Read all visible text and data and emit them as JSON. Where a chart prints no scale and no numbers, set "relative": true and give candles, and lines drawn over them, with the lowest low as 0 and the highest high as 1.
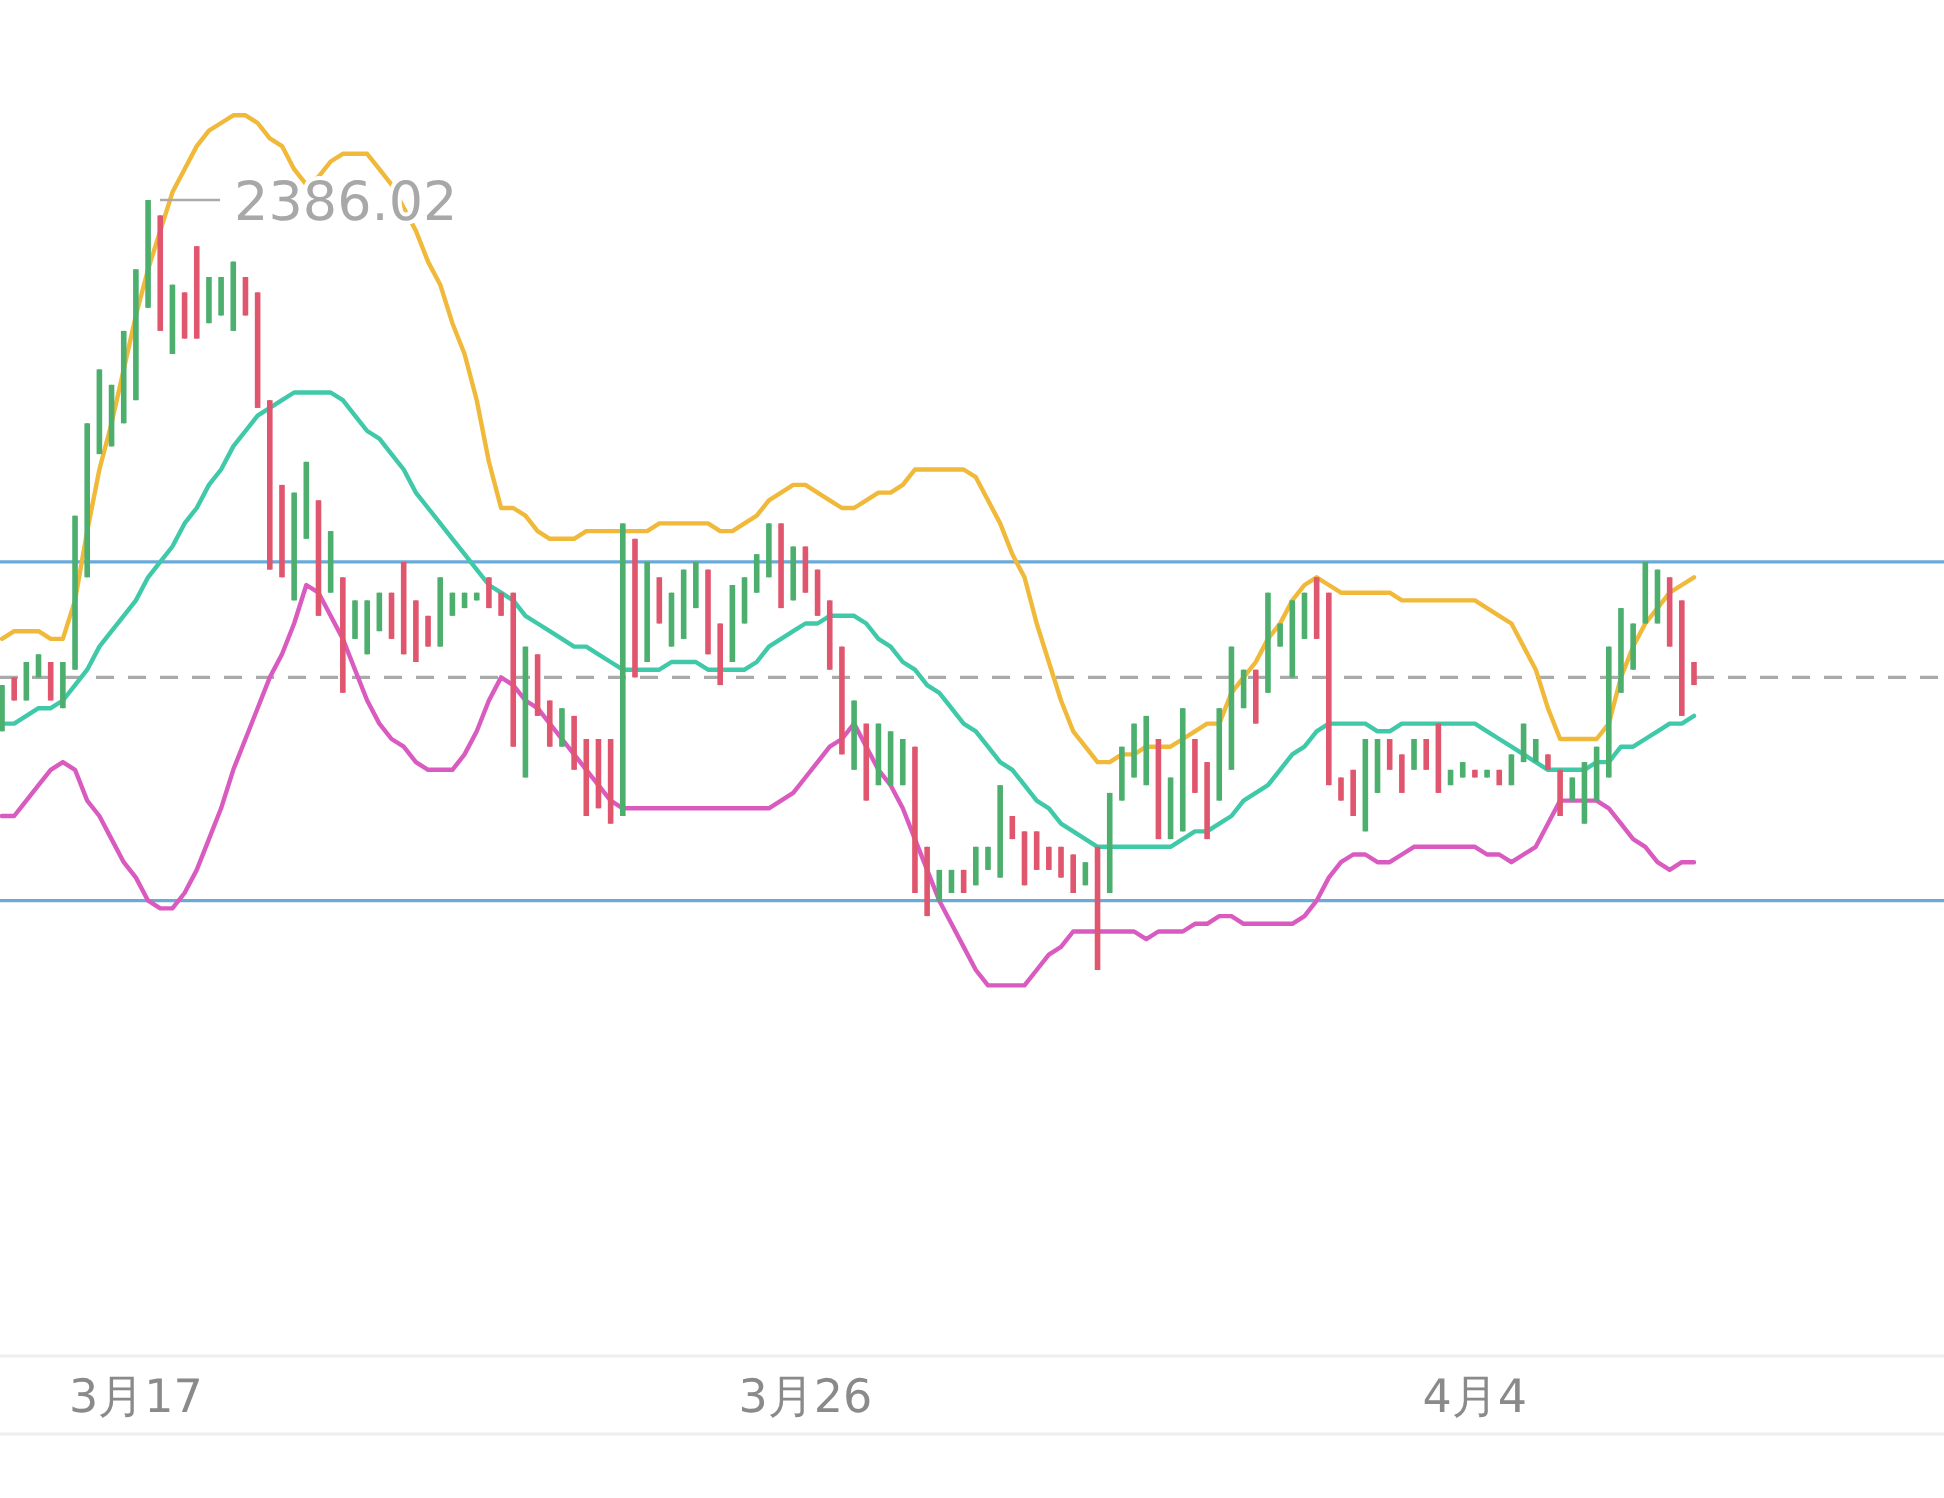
{
  "chart_data": {
    "type": "candlestick",
    "relative": true,
    "categories": [
      null,
      null,
      null,
      null,
      null,
      null,
      null,
      null,
      null,
      null,
      null,
      "3月17",
      null,
      null,
      null,
      null,
      null,
      null,
      null,
      null,
      null,
      null,
      null,
      null,
      null,
      null,
      null,
      null,
      null,
      null,
      null,
      null,
      null,
      null,
      null,
      null,
      null,
      null,
      null,
      null,
      null,
      null,
      null,
      null,
      null,
      null,
      null,
      null,
      null,
      null,
      null,
      null,
      null,
      null,
      null,
      null,
      null,
      null,
      null,
      null,
      null,
      null,
      null,
      null,
      null,
      null,
      "3月26",
      null,
      null,
      null,
      null,
      null,
      null,
      null,
      null,
      null,
      null,
      null,
      null,
      null,
      null,
      null,
      null,
      null,
      null,
      null,
      null,
      null,
      null,
      null,
      null,
      null,
      null,
      null,
      null,
      null,
      null,
      null,
      null,
      null,
      null,
      null,
      null,
      null,
      null,
      null,
      null,
      null,
      null,
      null,
      null,
      null,
      null,
      null,
      null,
      null,
      null,
      null,
      null,
      null,
      null,
      "4月4",
      null,
      null,
      null,
      null,
      null,
      null,
      null,
      null,
      null,
      null,
      null,
      null,
      null,
      null,
      null,
      null,
      null,
      null
    ],
    "ohlc": [
      [
        0.31,
        0.37,
        0.31,
        0.37
      ],
      [
        0.38,
        0.38,
        0.35,
        0.35
      ],
      [
        0.35,
        0.4,
        0.35,
        0.4
      ],
      [
        0.38,
        0.41,
        0.38,
        0.41
      ],
      [
        0.4,
        0.4,
        0.35,
        0.35
      ],
      [
        0.34,
        0.4,
        0.34,
        0.4
      ],
      [
        0.39,
        0.59,
        0.39,
        0.59
      ],
      [
        0.51,
        0.71,
        0.51,
        0.71
      ],
      [
        0.67,
        0.78,
        0.67,
        0.78
      ],
      [
        0.68,
        0.76,
        0.68,
        0.76
      ],
      [
        0.71,
        0.83,
        0.71,
        0.83
      ],
      [
        0.74,
        0.91,
        0.74,
        0.91
      ],
      [
        0.86,
        1,
        0.86,
        1
      ],
      [
        0.98,
        0.98,
        0.83,
        0.83
      ],
      [
        0.8,
        0.89,
        0.8,
        0.89
      ],
      [
        0.88,
        0.88,
        0.82,
        0.82
      ],
      [
        0.94,
        0.94,
        0.82,
        0.82
      ],
      [
        0.84,
        0.9,
        0.84,
        0.9
      ],
      [
        0.85,
        0.9,
        0.85,
        0.9
      ],
      [
        0.83,
        0.92,
        0.83,
        0.92
      ],
      [
        0.9,
        0.9,
        0.85,
        0.85
      ],
      [
        0.88,
        0.88,
        0.73,
        0.73
      ],
      [
        0.74,
        0.74,
        0.52,
        0.52
      ],
      [
        0.63,
        0.63,
        0.51,
        0.51
      ],
      [
        0.48,
        0.62,
        0.48,
        0.62
      ],
      [
        0.56,
        0.66,
        0.56,
        0.66
      ],
      [
        0.61,
        0.61,
        0.46,
        0.46
      ],
      [
        0.49,
        0.57,
        0.49,
        0.57
      ],
      [
        0.51,
        0.51,
        0.36,
        0.36
      ],
      [
        0.43,
        0.48,
        0.43,
        0.48
      ],
      [
        0.41,
        0.48,
        0.41,
        0.48
      ],
      [
        0.44,
        0.49,
        0.44,
        0.49
      ],
      [
        0.49,
        0.49,
        0.43,
        0.43
      ],
      [
        0.53,
        0.53,
        0.41,
        0.41
      ],
      [
        0.48,
        0.48,
        0.4,
        0.4
      ],
      [
        0.46,
        0.46,
        0.42,
        0.42
      ],
      [
        0.42,
        0.51,
        0.42,
        0.51
      ],
      [
        0.46,
        0.49,
        0.46,
        0.49
      ],
      [
        0.47,
        0.49,
        0.47,
        0.49
      ],
      [
        0.48,
        0.49,
        0.48,
        0.49
      ],
      [
        0.51,
        0.51,
        0.47,
        0.47
      ],
      [
        0.49,
        0.49,
        0.46,
        0.46
      ],
      [
        0.49,
        0.49,
        0.29,
        0.29
      ],
      [
        0.25,
        0.42,
        0.25,
        0.42
      ],
      [
        0.41,
        0.41,
        0.33,
        0.33
      ],
      [
        0.35,
        0.35,
        0.29,
        0.29
      ],
      [
        0.29,
        0.34,
        0.29,
        0.34
      ],
      [
        0.33,
        0.33,
        0.26,
        0.26
      ],
      [
        0.3,
        0.3,
        0.2,
        0.2
      ],
      [
        0.3,
        0.3,
        0.21,
        0.21
      ],
      [
        0.3,
        0.3,
        0.19,
        0.19
      ],
      [
        0.2,
        0.58,
        0.2,
        0.58
      ],
      [
        0.56,
        0.56,
        0.38,
        0.38
      ],
      [
        0.4,
        0.53,
        0.4,
        0.53
      ],
      [
        0.51,
        0.51,
        0.45,
        0.45
      ],
      [
        0.42,
        0.49,
        0.42,
        0.49
      ],
      [
        0.43,
        0.52,
        0.43,
        0.52
      ],
      [
        0.47,
        0.53,
        0.47,
        0.53
      ],
      [
        0.52,
        0.52,
        0.41,
        0.41
      ],
      [
        0.45,
        0.45,
        0.37,
        0.37
      ],
      [
        0.4,
        0.5,
        0.4,
        0.5
      ],
      [
        0.45,
        0.51,
        0.45,
        0.51
      ],
      [
        0.49,
        0.54,
        0.49,
        0.54
      ],
      [
        0.51,
        0.58,
        0.51,
        0.58
      ],
      [
        0.58,
        0.58,
        0.47,
        0.47
      ],
      [
        0.48,
        0.55,
        0.48,
        0.55
      ],
      [
        0.55,
        0.55,
        0.49,
        0.49
      ],
      [
        0.52,
        0.52,
        0.46,
        0.46
      ],
      [
        0.48,
        0.48,
        0.39,
        0.39
      ],
      [
        0.42,
        0.42,
        0.28,
        0.28
      ],
      [
        0.26,
        0.35,
        0.26,
        0.35
      ],
      [
        0.32,
        0.32,
        0.22,
        0.22
      ],
      [
        0.24,
        0.32,
        0.24,
        0.32
      ],
      [
        0.24,
        0.31,
        0.24,
        0.31
      ],
      [
        0.24,
        0.3,
        0.24,
        0.3
      ],
      [
        0.29,
        0.29,
        0.1,
        0.1
      ],
      [
        0.16,
        0.16,
        0.07,
        0.07
      ],
      [
        0.09,
        0.13,
        0.09,
        0.13
      ],
      [
        0.1,
        0.13,
        0.1,
        0.13
      ],
      [
        0.13,
        0.13,
        0.1,
        0.1
      ],
      [
        0.11,
        0.16,
        0.11,
        0.16
      ],
      [
        0.13,
        0.16,
        0.13,
        0.16
      ],
      [
        0.12,
        0.24,
        0.12,
        0.24
      ],
      [
        0.2,
        0.2,
        0.17,
        0.17
      ],
      [
        0.18,
        0.18,
        0.11,
        0.11
      ],
      [
        0.18,
        0.18,
        0.13,
        0.13
      ],
      [
        0.16,
        0.16,
        0.13,
        0.13
      ],
      [
        0.16,
        0.16,
        0.12,
        0.12
      ],
      [
        0.15,
        0.15,
        0.1,
        0.1
      ],
      [
        0.11,
        0.14,
        0.11,
        0.14
      ],
      [
        0.16,
        0.16,
        0,
        0
      ],
      [
        0.1,
        0.23,
        0.1,
        0.23
      ],
      [
        0.22,
        0.29,
        0.22,
        0.29
      ],
      [
        0.25,
        0.32,
        0.25,
        0.32
      ],
      [
        0.24,
        0.33,
        0.24,
        0.33
      ],
      [
        0.3,
        0.3,
        0.17,
        0.17
      ],
      [
        0.17,
        0.25,
        0.17,
        0.25
      ],
      [
        0.18,
        0.34,
        0.18,
        0.34
      ],
      [
        0.3,
        0.3,
        0.23,
        0.23
      ],
      [
        0.27,
        0.27,
        0.17,
        0.17
      ],
      [
        0.22,
        0.34,
        0.22,
        0.34
      ],
      [
        0.26,
        0.42,
        0.26,
        0.42
      ],
      [
        0.34,
        0.39,
        0.34,
        0.39
      ],
      [
        0.39,
        0.39,
        0.32,
        0.32
      ],
      [
        0.36,
        0.49,
        0.36,
        0.49
      ],
      [
        0.42,
        0.45,
        0.42,
        0.45
      ],
      [
        0.38,
        0.48,
        0.38,
        0.48
      ],
      [
        0.43,
        0.49,
        0.43,
        0.49
      ],
      [
        0.51,
        0.51,
        0.43,
        0.43
      ],
      [
        0.49,
        0.49,
        0.24,
        0.24
      ],
      [
        0.25,
        0.25,
        0.22,
        0.22
      ],
      [
        0.26,
        0.26,
        0.2,
        0.2
      ],
      [
        0.18,
        0.3,
        0.18,
        0.3
      ],
      [
        0.23,
        0.3,
        0.23,
        0.3
      ],
      [
        0.3,
        0.3,
        0.26,
        0.26
      ],
      [
        0.28,
        0.28,
        0.23,
        0.23
      ],
      [
        0.26,
        0.3,
        0.26,
        0.3
      ],
      [
        0.3,
        0.3,
        0.26,
        0.26
      ],
      [
        0.32,
        0.32,
        0.23,
        0.23
      ],
      [
        0.24,
        0.26,
        0.24,
        0.26
      ],
      [
        0.25,
        0.27,
        0.25,
        0.27
      ],
      [
        0.26,
        0.26,
        0.25,
        0.25
      ],
      [
        0.25,
        0.26,
        0.25,
        0.26
      ],
      [
        0.26,
        0.26,
        0.24,
        0.24
      ],
      [
        0.24,
        0.28,
        0.24,
        0.28
      ],
      [
        0.27,
        0.32,
        0.27,
        0.32
      ],
      [
        0.27,
        0.3,
        0.27,
        0.3
      ],
      [
        0.28,
        0.28,
        0.26,
        0.26
      ],
      [
        0.26,
        0.26,
        0.2,
        0.2
      ],
      [
        0.22,
        0.25,
        0.22,
        0.25
      ],
      [
        0.19,
        0.27,
        0.19,
        0.27
      ],
      [
        0.22,
        0.29,
        0.22,
        0.29
      ],
      [
        0.25,
        0.42,
        0.25,
        0.42
      ],
      [
        0.36,
        0.47,
        0.36,
        0.47
      ],
      [
        0.39,
        0.45,
        0.39,
        0.45
      ],
      [
        0.45,
        0.53,
        0.45,
        0.53
      ],
      [
        0.45,
        0.52,
        0.45,
        0.52
      ],
      [
        0.51,
        0.51,
        0.42,
        0.42
      ],
      [
        0.48,
        0.48,
        0.33,
        0.33
      ],
      [
        0.4,
        0.4,
        0.37,
        0.37
      ]
    ],
    "colors": [
      "#4caf6e",
      "#e0566e",
      "#4caf6e",
      "#4caf6e",
      "#e0566e",
      "#4caf6e",
      "#4caf6e",
      "#4caf6e",
      "#4caf6e",
      "#4caf6e",
      "#4caf6e",
      "#4caf6e",
      "#4caf6e",
      "#e0566e",
      "#4caf6e",
      "#e0566e",
      "#e0566e",
      "#4caf6e",
      "#4caf6e",
      "#4caf6e",
      "#e0566e",
      "#e0566e",
      "#e0566e",
      "#e0566e",
      "#4caf6e",
      "#4caf6e",
      "#e0566e",
      "#4caf6e",
      "#e0566e",
      "#4caf6e",
      "#4caf6e",
      "#4caf6e",
      "#e0566e",
      "#e0566e",
      "#e0566e",
      "#e0566e",
      "#4caf6e",
      "#4caf6e",
      "#4caf6e",
      "#4caf6e",
      "#e0566e",
      "#e0566e",
      "#e0566e",
      "#4caf6e",
      "#e0566e",
      "#e0566e",
      "#4caf6e",
      "#e0566e",
      "#e0566e",
      "#e0566e",
      "#e0566e",
      "#4caf6e",
      "#e0566e",
      "#4caf6e",
      "#e0566e",
      "#4caf6e",
      "#4caf6e",
      "#4caf6e",
      "#e0566e",
      "#e0566e",
      "#4caf6e",
      "#4caf6e",
      "#4caf6e",
      "#4caf6e",
      "#e0566e",
      "#4caf6e",
      "#e0566e",
      "#e0566e",
      "#e0566e",
      "#e0566e",
      "#4caf6e",
      "#e0566e",
      "#4caf6e",
      "#4caf6e",
      "#4caf6e",
      "#e0566e",
      "#e0566e",
      "#4caf6e",
      "#4caf6e",
      "#e0566e",
      "#4caf6e",
      "#4caf6e",
      "#4caf6e",
      "#e0566e",
      "#e0566e",
      "#e0566e",
      "#e0566e",
      "#e0566e",
      "#e0566e",
      "#4caf6e",
      "#e0566e",
      "#4caf6e",
      "#4caf6e",
      "#4caf6e",
      "#4caf6e",
      "#e0566e",
      "#4caf6e",
      "#4caf6e",
      "#e0566e",
      "#e0566e",
      "#4caf6e",
      "#4caf6e",
      "#4caf6e",
      "#e0566e",
      "#4caf6e",
      "#4caf6e",
      "#4caf6e",
      "#4caf6e",
      "#e0566e",
      "#e0566e",
      "#e0566e",
      "#e0566e",
      "#4caf6e",
      "#4caf6e",
      "#e0566e",
      "#e0566e",
      "#4caf6e",
      "#e0566e",
      "#e0566e",
      "#4caf6e",
      "#4caf6e",
      "#e0566e",
      "#4caf6e",
      "#e0566e",
      "#4caf6e",
      "#4caf6e",
      "#4caf6e",
      "#e0566e",
      "#e0566e",
      "#4caf6e",
      "#4caf6e",
      "#4caf6e",
      "#4caf6e",
      "#4caf6e",
      "#4caf6e",
      "#4caf6e",
      "#4caf6e",
      "#e0566e",
      "#e0566e",
      "#e0566e"
    ],
    "series": [
      {
        "type": "line",
        "color": "#f0b93a",
        "values": [
          0.43,
          0.44,
          0.44,
          0.44,
          0.43,
          0.43,
          0.48,
          0.57,
          0.65,
          0.71,
          0.78,
          0.85,
          0.91,
          0.96,
          1.01,
          1.04,
          1.07,
          1.09,
          1.1,
          1.11,
          1.11,
          1.1,
          1.08,
          1.07,
          1.04,
          1.02,
          1.03,
          1.05,
          1.06,
          1.06,
          1.06,
          1.04,
          1.02,
          0.99,
          0.96,
          0.92,
          0.89,
          0.84,
          0.8,
          0.74,
          0.66,
          0.6,
          0.6,
          0.59,
          0.57,
          0.56,
          0.56,
          0.56,
          0.57,
          0.57,
          0.57,
          0.57,
          0.57,
          0.57,
          0.58,
          0.58,
          0.58,
          0.58,
          0.58,
          0.57,
          0.57,
          0.58,
          0.59,
          0.61,
          0.62,
          0.63,
          0.63,
          0.62,
          0.61,
          0.6,
          0.6,
          0.61,
          0.62,
          0.62,
          0.63,
          0.65,
          0.65,
          0.65,
          0.65,
          0.65,
          0.64,
          0.61,
          0.58,
          0.54,
          0.51,
          0.45,
          0.4,
          0.35,
          0.31,
          0.29,
          0.27,
          0.27,
          0.28,
          0.28,
          0.29,
          0.29,
          0.29,
          0.3,
          0.31,
          0.32,
          0.32,
          0.36,
          0.38,
          0.4,
          0.43,
          0.45,
          0.48,
          0.5,
          0.51,
          0.5,
          0.49,
          0.49,
          0.49,
          0.49,
          0.49,
          0.48,
          0.48,
          0.48,
          0.48,
          0.48,
          0.48,
          0.48,
          0.47,
          0.46,
          0.45,
          0.42,
          0.39,
          0.34,
          0.3,
          0.3,
          0.3,
          0.3,
          0.32,
          0.38,
          0.42,
          0.45,
          0.47,
          0.49,
          0.5,
          0.51
        ]
      },
      {
        "type": "line",
        "color": "#40c9a9",
        "values": [
          0.32,
          0.32,
          0.33,
          0.34,
          0.34,
          0.35,
          0.37,
          0.39,
          0.42,
          0.44,
          0.46,
          0.48,
          0.51,
          0.53,
          0.55,
          0.58,
          0.6,
          0.63,
          0.65,
          0.68,
          0.7,
          0.72,
          0.73,
          0.74,
          0.75,
          0.75,
          0.75,
          0.75,
          0.74,
          0.72,
          0.7,
          0.69,
          0.67,
          0.65,
          0.62,
          0.6,
          0.58,
          0.56,
          0.54,
          0.52,
          0.5,
          0.49,
          0.48,
          0.46,
          0.45,
          0.44,
          0.43,
          0.42,
          0.42,
          0.41,
          0.4,
          0.39,
          0.39,
          0.39,
          0.39,
          0.4,
          0.4,
          0.4,
          0.39,
          0.39,
          0.39,
          0.39,
          0.4,
          0.42,
          0.43,
          0.44,
          0.45,
          0.45,
          0.46,
          0.46,
          0.46,
          0.45,
          0.43,
          0.42,
          0.4,
          0.39,
          0.37,
          0.36,
          0.34,
          0.32,
          0.31,
          0.29,
          0.27,
          0.26,
          0.24,
          0.22,
          0.21,
          0.19,
          0.18,
          0.17,
          0.16,
          0.16,
          0.16,
          0.16,
          0.16,
          0.16,
          0.16,
          0.17,
          0.18,
          0.18,
          0.19,
          0.2,
          0.22,
          0.23,
          0.24,
          0.26,
          0.28,
          0.29,
          0.31,
          0.32,
          0.32,
          0.32,
          0.32,
          0.31,
          0.31,
          0.32,
          0.32,
          0.32,
          0.32,
          0.32,
          0.32,
          0.32,
          0.31,
          0.3,
          0.29,
          0.28,
          0.27,
          0.26,
          0.26,
          0.26,
          0.26,
          0.27,
          0.27,
          0.29,
          0.29,
          0.3,
          0.31,
          0.32,
          0.32,
          0.33
        ]
      },
      {
        "type": "line",
        "color": "#d95bbf",
        "values": [
          0.2,
          0.2,
          0.22,
          0.24,
          0.26,
          0.27,
          0.26,
          0.22,
          0.2,
          0.17,
          0.14,
          0.12,
          0.09,
          0.08,
          0.08,
          0.1,
          0.13,
          0.17,
          0.21,
          0.26,
          0.3,
          0.34,
          0.38,
          0.41,
          0.45,
          0.5,
          0.49,
          0.46,
          0.43,
          0.39,
          0.35,
          0.32,
          0.3,
          0.29,
          0.27,
          0.26,
          0.26,
          0.26,
          0.28,
          0.31,
          0.35,
          0.38,
          0.37,
          0.35,
          0.34,
          0.32,
          0.3,
          0.28,
          0.26,
          0.24,
          0.22,
          0.21,
          0.21,
          0.21,
          0.21,
          0.21,
          0.21,
          0.21,
          0.21,
          0.21,
          0.21,
          0.21,
          0.21,
          0.21,
          0.22,
          0.23,
          0.25,
          0.27,
          0.29,
          0.3,
          0.32,
          0.29,
          0.26,
          0.24,
          0.21,
          0.17,
          0.13,
          0.09,
          0.06,
          0.03,
          0,
          -0.02,
          -0.02,
          -0.02,
          -0.02,
          0,
          0.02,
          0.03,
          0.05,
          0.05,
          0.05,
          0.05,
          0.05,
          0.05,
          0.04,
          0.05,
          0.05,
          0.05,
          0.06,
          0.06,
          0.07,
          0.07,
          0.06,
          0.06,
          0.06,
          0.06,
          0.06,
          0.07,
          0.09,
          0.12,
          0.14,
          0.15,
          0.15,
          0.14,
          0.14,
          0.15,
          0.16,
          0.16,
          0.16,
          0.16,
          0.16,
          0.16,
          0.15,
          0.15,
          0.14,
          0.15,
          0.16,
          0.19,
          0.22,
          0.22,
          0.22,
          0.22,
          0.21,
          0.19,
          0.17,
          0.16,
          0.14,
          0.13,
          0.14,
          0.14
        ]
      }
    ],
    "ref_lines": [
      {
        "axis": "y",
        "value": 0.53,
        "color": "#6aaad8",
        "line_style": "solid"
      },
      {
        "axis": "y",
        "value": 0.09,
        "color": "#6aaad8",
        "line_style": "solid"
      },
      {
        "axis": "y",
        "value": 0.38,
        "color": "#aaaaaa",
        "line_style": "dashed"
      }
    ],
    "annotations": [
      "2386.02"
    ]
  }
}
